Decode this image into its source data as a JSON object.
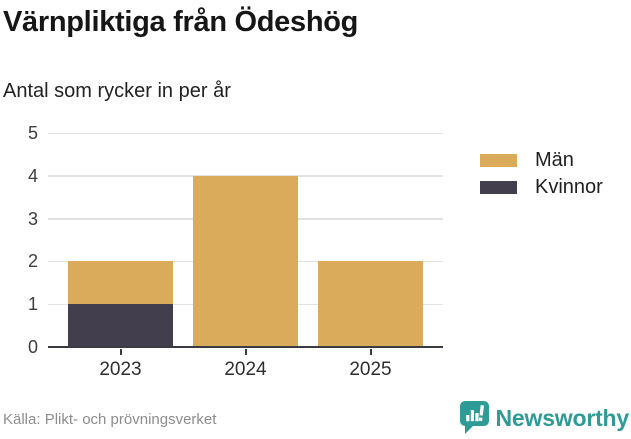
{
  "source": "Källa: Plikt- och prövningsverket",
  "brand": {
    "name": "Newsworthy",
    "color": "#2F9B96",
    "icon": "speech-bubble-bar-chart-icon"
  },
  "colors": {
    "men": "#DAAB5A",
    "women": "#423E4E",
    "axis": "#3a3a42",
    "gridline": "#e2e2e2",
    "brand_teal": "#2F9B96"
  },
  "chart_data": {
    "type": "bar",
    "stacked": true,
    "title": "Värnpliktiga från Ödeshög",
    "subtitle": "Antal som rycker in per år",
    "categories": [
      "2023",
      "2024",
      "2025"
    ],
    "series": [
      {
        "name": "Män",
        "color": "#DAAB5A",
        "values": [
          1,
          4,
          2
        ]
      },
      {
        "name": "Kvinnor",
        "color": "#423E4E",
        "values": [
          1,
          0,
          0
        ]
      }
    ],
    "totals": [
      2,
      4,
      2
    ],
    "ylim": [
      0,
      5
    ],
    "yticks": [
      0,
      1,
      2,
      3,
      4,
      5
    ],
    "grid": true,
    "legend_position": "right",
    "stack_order": "last-series-at-bottom"
  }
}
